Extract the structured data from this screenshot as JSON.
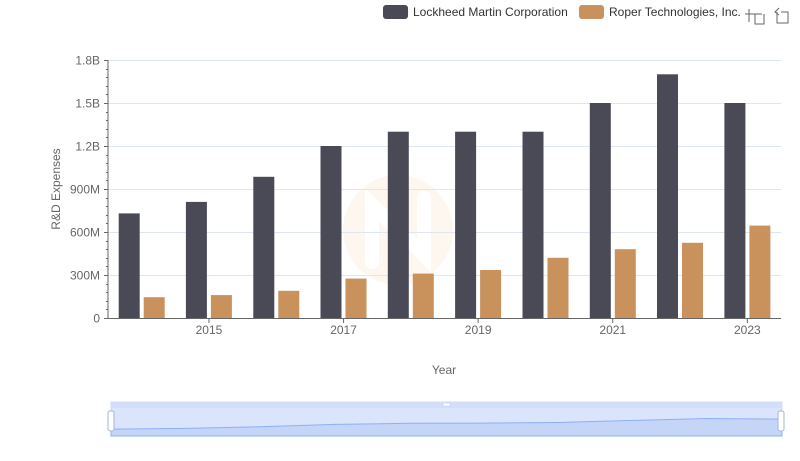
{
  "toolbox": {
    "zoom_icon": "data-zoom-icon",
    "reset_icon": "zoom-reset-icon"
  },
  "watermark_icon": "logo-watermark",
  "chart_data": {
    "type": "bar",
    "title": "",
    "xlabel": "Year",
    "ylabel": "R&D Expenses",
    "categories": [
      "2014",
      "2015",
      "2016",
      "2017",
      "2018",
      "2019",
      "2020",
      "2021",
      "2022",
      "2023"
    ],
    "x_tick_labels": [
      "2015",
      "2017",
      "2019",
      "2021",
      "2023"
    ],
    "y_ticks": [
      0,
      300000000,
      600000000,
      900000000,
      1200000000,
      1500000000,
      1800000000
    ],
    "y_tick_labels": [
      "0",
      "300M",
      "600M",
      "900M",
      "1.2B",
      "1.5B",
      "1.8B"
    ],
    "ylim": [
      0,
      1800000000
    ],
    "grid": true,
    "legend_position": "top",
    "series": [
      {
        "name": "Lockheed Martin Corporation",
        "color": "#4a4a56",
        "values": [
          730000000,
          810000000,
          985000000,
          1200000000,
          1300000000,
          1300000000,
          1300000000,
          1500000000,
          1700000000,
          1500000000
        ]
      },
      {
        "name": "Roper Technologies, Inc.",
        "color": "#c9925c",
        "values": [
          145000000,
          160000000,
          190000000,
          275000000,
          310000000,
          335000000,
          420000000,
          480000000,
          525000000,
          645000000
        ]
      }
    ]
  },
  "data_zoom": {
    "range": [
      0,
      100
    ],
    "handle_color": "#d3dff8"
  }
}
